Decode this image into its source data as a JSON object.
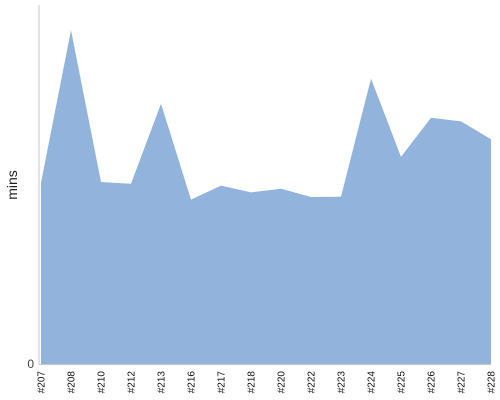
{
  "chart_data": {
    "type": "area",
    "categories": [
      "#207",
      "#208",
      "#210",
      "#212",
      "#213",
      "#216",
      "#217",
      "#218",
      "#220",
      "#222",
      "#223",
      "#224",
      "#225",
      "#226",
      "#227",
      "#228"
    ],
    "series": [
      {
        "values": [
          50.5,
          93.0,
          50.7,
          50.2,
          72.5,
          45.8,
          49.7,
          47.8,
          48.8,
          46.5,
          46.6,
          79.5,
          57.7,
          68.6,
          67.6,
          62.6
        ]
      }
    ],
    "ylabel": "mins",
    "y_ticks": [
      "0"
    ],
    "ylim": [
      0,
      100
    ],
    "grid": false
  },
  "colors": {
    "area_fill": "#91b3dc",
    "axis": "#c8c8c8"
  }
}
